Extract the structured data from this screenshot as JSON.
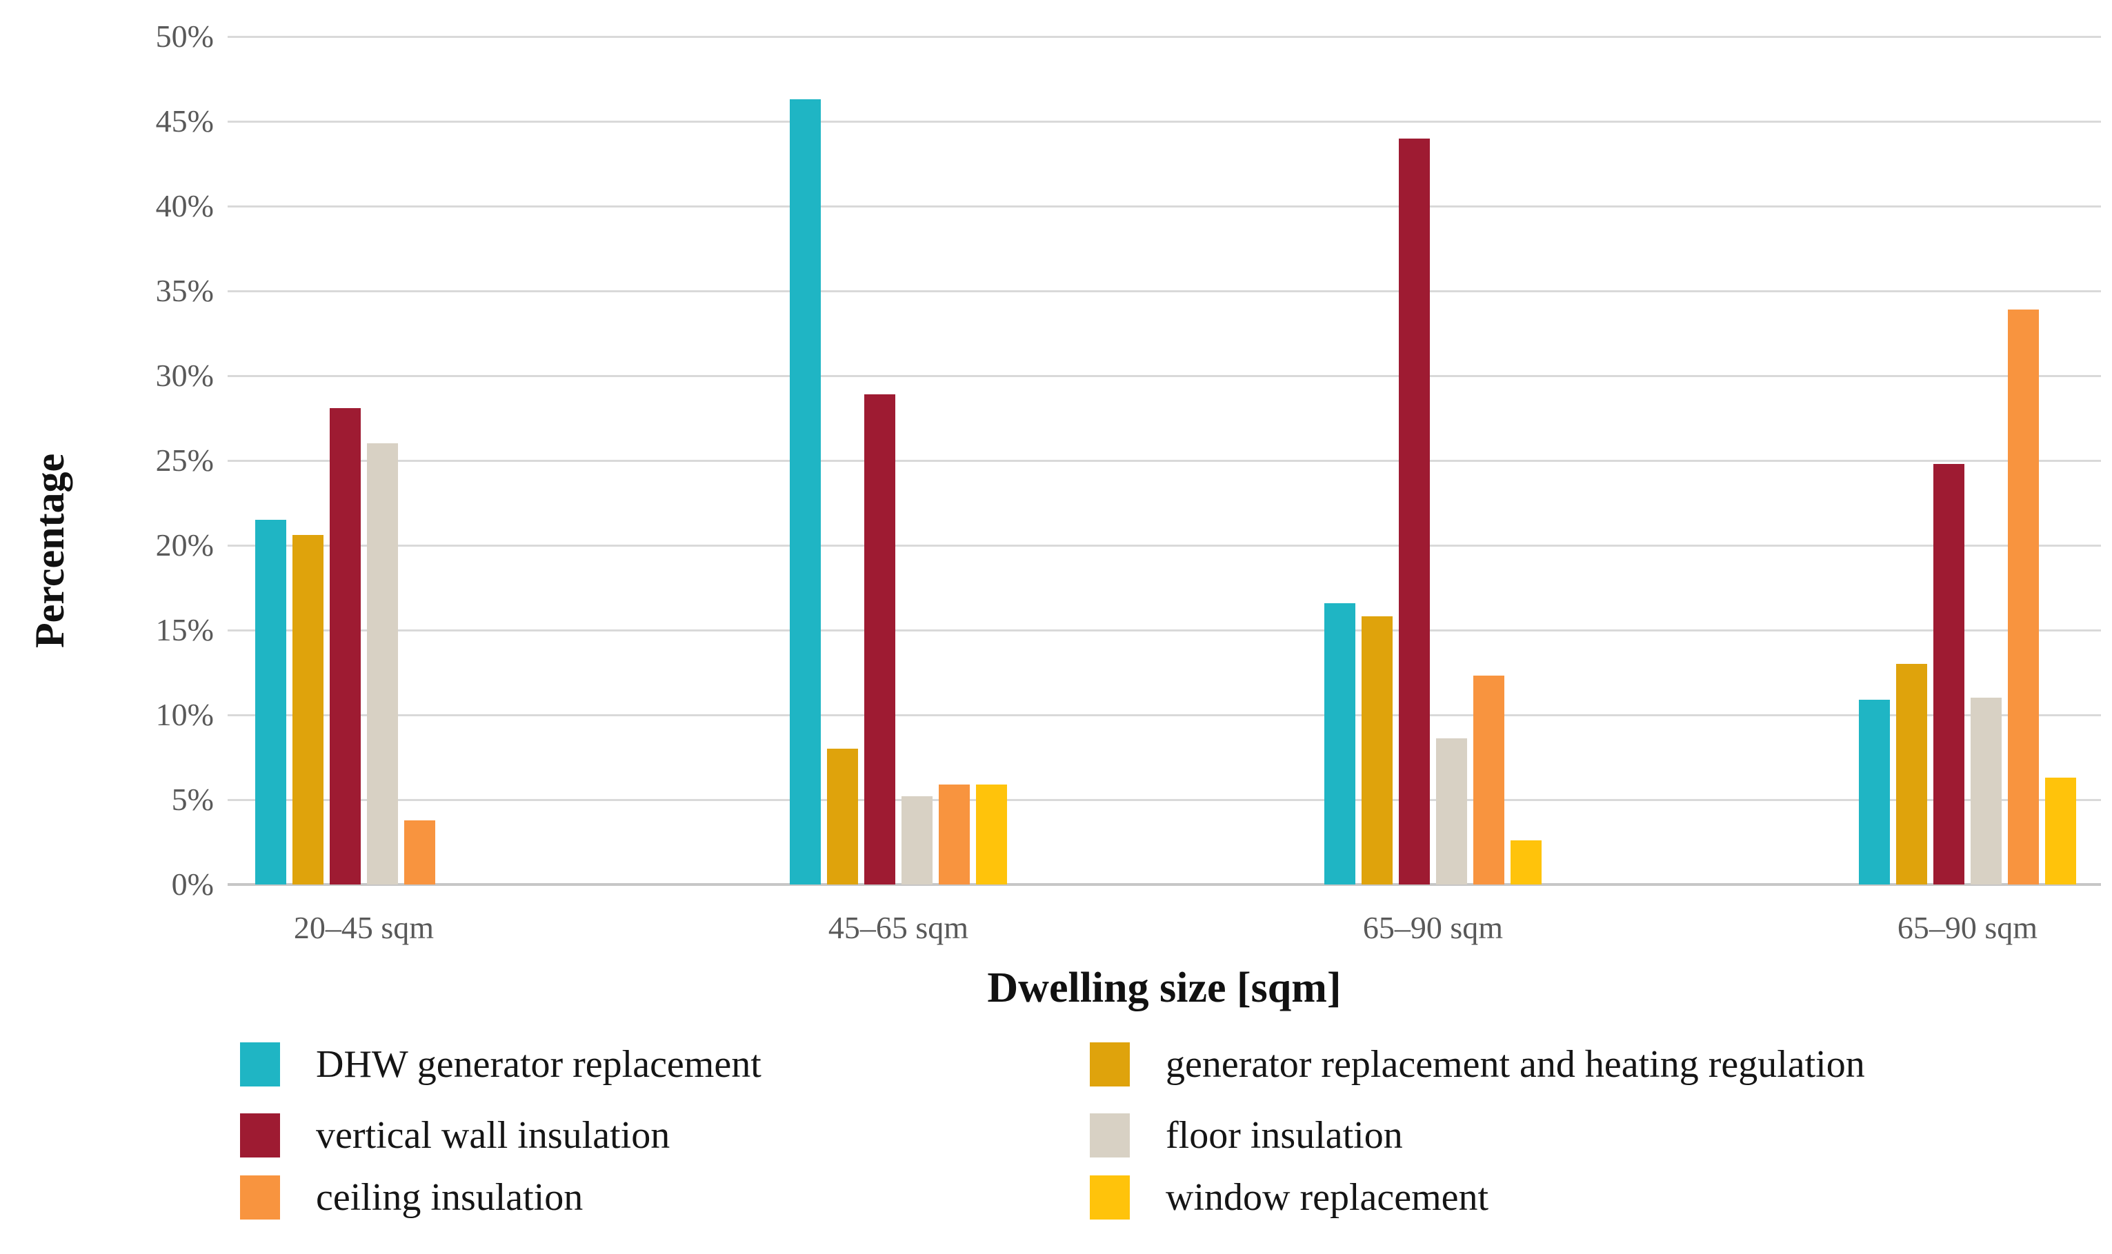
{
  "chart_data": {
    "type": "bar",
    "title": "",
    "xlabel": "Dwelling size [sqm]",
    "ylabel": "Percentage",
    "ylim": [
      0,
      50
    ],
    "ytick_step": 5,
    "ytick_labels": [
      "0%",
      "5%",
      "10%",
      "15%",
      "20%",
      "25%",
      "30%",
      "35%",
      "40%",
      "45%",
      "50%"
    ],
    "grid": true,
    "legend_position": "bottom, two columns",
    "categories": [
      "20–45 sqm",
      "45–65 sqm",
      "65–90 sqm",
      "65–90 sqm"
    ],
    "series": [
      {
        "name": "DHW generator replacement",
        "color": "#1FB5C4",
        "values": [
          21.5,
          46.3,
          16.6,
          10.9
        ]
      },
      {
        "name": "generator replacement and heating regulation",
        "color": "#DFA30C",
        "values": [
          20.6,
          8.0,
          15.8,
          13.0
        ]
      },
      {
        "name": "vertical wall insulation",
        "color": "#9E1B32",
        "values": [
          28.1,
          28.9,
          44.0,
          24.8
        ]
      },
      {
        "name": "floor insulation",
        "color": "#D8D1C4",
        "values": [
          26.0,
          5.2,
          8.6,
          11.0
        ]
      },
      {
        "name": "ceiling insulation",
        "color": "#F8943F",
        "values": [
          3.8,
          5.9,
          12.3,
          33.9
        ]
      },
      {
        "name": "window replacement",
        "color": "#FFC30B",
        "values": [
          0,
          5.9,
          2.6,
          6.3
        ]
      }
    ],
    "legend_columns": [
      [
        0,
        2,
        4
      ],
      [
        1,
        3,
        5
      ]
    ],
    "colors": {
      "gridline": "#d9d9d9",
      "axis_line": "#c6c6c6",
      "tick_text": "#595959",
      "label_text": "#151515"
    }
  }
}
